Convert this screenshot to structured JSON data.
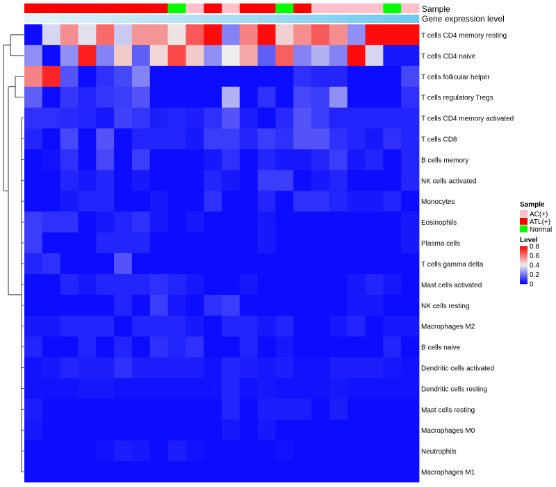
{
  "chart_data": {
    "type": "heatmap",
    "annotation_tracks": [
      "Sample",
      "Gene expression level"
    ],
    "samples": [
      "ATL(+)",
      "ATL(+)",
      "ATL(+)",
      "ATL(+)",
      "ATL(+)",
      "ATL(+)",
      "ATL(+)",
      "ATL(+)",
      "Normal",
      "AC(+)",
      "ATL(+)",
      "AC(+)",
      "ATL(+)",
      "ATL(+)",
      "Normal",
      "ATL(+)",
      "AC(+)",
      "AC(+)",
      "AC(+)",
      "AC(+)",
      "Normal",
      "AC(+)"
    ],
    "expression_level": [
      0.03,
      0.07,
      0.11,
      0.15,
      0.19,
      0.23,
      0.27,
      0.3,
      0.34,
      0.38,
      0.42,
      0.46,
      0.5,
      0.54,
      0.58,
      0.62,
      0.66,
      0.7,
      0.74,
      0.78,
      0.82,
      0.86
    ],
    "rows": [
      "T cells CD4 memory resting",
      "T cells CD4 naive",
      "T cells follicular helper",
      "T cells regulatory  Tregs",
      "T cells CD4 memory activated",
      "T cells CD8",
      "B cells memory",
      "NK cells activated",
      "Monocytes",
      "Eosinophils",
      "Plasma cells",
      "T cells gamma delta",
      "Mast cells activated",
      "NK cells resting",
      "Macrophages M2",
      "B cells naive",
      "Dendritic cells activated",
      "Dendritic cells resting",
      "Mast cells resting",
      "Macrophages M0",
      "Neutrophils",
      "Macrophages M1"
    ],
    "values": [
      [
        0.02,
        0.36,
        0.56,
        0.38,
        0.62,
        0.34,
        0.55,
        0.55,
        0.42,
        0.65,
        0.78,
        0.22,
        0.58,
        0.78,
        0.45,
        0.56,
        0.65,
        0.56,
        0.24,
        0.78,
        0.78,
        0.78
      ],
      [
        0.24,
        0.02,
        0.24,
        0.75,
        0.22,
        0.46,
        0.16,
        0.44,
        0.68,
        0.46,
        0.24,
        0.4,
        0.52,
        0.16,
        0.64,
        0.22,
        0.3,
        0.22,
        0.78,
        0.36,
        0.04,
        0.04
      ],
      [
        0.58,
        0.74,
        0.14,
        0.02,
        0.08,
        0.12,
        0.22,
        0.02,
        0.02,
        0.02,
        0.02,
        0.02,
        0.02,
        0.02,
        0.02,
        0.08,
        0.06,
        0.06,
        0.02,
        0.02,
        0.02,
        0.12
      ],
      [
        0.16,
        0.02,
        0.09,
        0.06,
        0.09,
        0.1,
        0.14,
        0.02,
        0.02,
        0.02,
        0.02,
        0.3,
        0.02,
        0.08,
        0.02,
        0.12,
        0.1,
        0.24,
        0.02,
        0.02,
        0.02,
        0.08
      ],
      [
        0.08,
        0.08,
        0.07,
        0.06,
        0.04,
        0.11,
        0.09,
        0.05,
        0.06,
        0.05,
        0.08,
        0.14,
        0.05,
        0.02,
        0.07,
        0.14,
        0.1,
        0.06,
        0.06,
        0.06,
        0.06,
        0.06
      ],
      [
        0.06,
        0.02,
        0.12,
        0.02,
        0.14,
        0.02,
        0.06,
        0.06,
        0.06,
        0.04,
        0.1,
        0.1,
        0.06,
        0.1,
        0.08,
        0.14,
        0.14,
        0.08,
        0.06,
        0.04,
        0.08,
        0.06
      ],
      [
        0.02,
        0.03,
        0.08,
        0.02,
        0.12,
        0.02,
        0.1,
        0.02,
        0.02,
        0.02,
        0.04,
        0.08,
        0.02,
        0.06,
        0.04,
        0.04,
        0.06,
        0.1,
        0.04,
        0.06,
        0.02,
        0.06
      ],
      [
        0.02,
        0.02,
        0.06,
        0.04,
        0.06,
        0.02,
        0.04,
        0.02,
        0.02,
        0.02,
        0.06,
        0.04,
        0.02,
        0.1,
        0.1,
        0.02,
        0.04,
        0.06,
        0.02,
        0.02,
        0.02,
        0.06
      ],
      [
        0.02,
        0.02,
        0.04,
        0.06,
        0.06,
        0.02,
        0.02,
        0.04,
        0.02,
        0.02,
        0.08,
        0.02,
        0.02,
        0.06,
        0.02,
        0.08,
        0.08,
        0.06,
        0.04,
        0.04,
        0.06,
        0.02
      ],
      [
        0.1,
        0.08,
        0.08,
        0.02,
        0.04,
        0.06,
        0.08,
        0.04,
        0.02,
        0.04,
        0.02,
        0.02,
        0.02,
        0.04,
        0.02,
        0.02,
        0.02,
        0.02,
        0.02,
        0.02,
        0.02,
        0.04
      ],
      [
        0.1,
        0.02,
        0.02,
        0.02,
        0.06,
        0.06,
        0.06,
        0.02,
        0.02,
        0.02,
        0.02,
        0.02,
        0.02,
        0.04,
        0.02,
        0.02,
        0.02,
        0.02,
        0.02,
        0.02,
        0.02,
        0.04
      ],
      [
        0.06,
        0.08,
        0.02,
        0.02,
        0.02,
        0.14,
        0.02,
        0.02,
        0.02,
        0.02,
        0.02,
        0.02,
        0.02,
        0.02,
        0.02,
        0.02,
        0.02,
        0.02,
        0.02,
        0.02,
        0.02,
        0.02
      ],
      [
        0.02,
        0.02,
        0.06,
        0.04,
        0.06,
        0.06,
        0.06,
        0.08,
        0.06,
        0.04,
        0.02,
        0.02,
        0.04,
        0.02,
        0.02,
        0.02,
        0.02,
        0.02,
        0.04,
        0.06,
        0.04,
        0.02
      ],
      [
        0.02,
        0.02,
        0.02,
        0.02,
        0.02,
        0.06,
        0.02,
        0.1,
        0.04,
        0.02,
        0.08,
        0.1,
        0.02,
        0.02,
        0.02,
        0.02,
        0.02,
        0.02,
        0.04,
        0.04,
        0.02,
        0.02
      ],
      [
        0.04,
        0.04,
        0.06,
        0.06,
        0.06,
        0.02,
        0.06,
        0.06,
        0.06,
        0.04,
        0.02,
        0.06,
        0.06,
        0.04,
        0.06,
        0.02,
        0.02,
        0.04,
        0.06,
        0.02,
        0.04,
        0.04
      ],
      [
        0.06,
        0.02,
        0.02,
        0.06,
        0.02,
        0.06,
        0.02,
        0.08,
        0.06,
        0.08,
        0.02,
        0.02,
        0.06,
        0.02,
        0.04,
        0.02,
        0.02,
        0.02,
        0.02,
        0.02,
        0.06,
        0.02
      ],
      [
        0.03,
        0.04,
        0.06,
        0.05,
        0.05,
        0.08,
        0.05,
        0.05,
        0.05,
        0.05,
        0.03,
        0.06,
        0.05,
        0.04,
        0.05,
        0.03,
        0.03,
        0.05,
        0.05,
        0.05,
        0.04,
        0.03
      ],
      [
        0.03,
        0.03,
        0.03,
        0.04,
        0.04,
        0.03,
        0.03,
        0.03,
        0.03,
        0.03,
        0.03,
        0.06,
        0.03,
        0.04,
        0.03,
        0.03,
        0.03,
        0.04,
        0.03,
        0.03,
        0.03,
        0.03
      ],
      [
        0.05,
        0.02,
        0.02,
        0.02,
        0.02,
        0.02,
        0.02,
        0.02,
        0.02,
        0.02,
        0.02,
        0.06,
        0.02,
        0.05,
        0.05,
        0.05,
        0.02,
        0.05,
        0.02,
        0.02,
        0.02,
        0.02
      ],
      [
        0.04,
        0.02,
        0.02,
        0.02,
        0.02,
        0.02,
        0.02,
        0.02,
        0.02,
        0.02,
        0.02,
        0.04,
        0.02,
        0.04,
        0.02,
        0.02,
        0.02,
        0.02,
        0.02,
        0.02,
        0.02,
        0.02
      ],
      [
        0.02,
        0.02,
        0.02,
        0.02,
        0.03,
        0.05,
        0.04,
        0.02,
        0.05,
        0.03,
        0.02,
        0.02,
        0.02,
        0.02,
        0.03,
        0.02,
        0.02,
        0.02,
        0.02,
        0.02,
        0.02,
        0.02
      ],
      [
        0.02,
        0.02,
        0.02,
        0.02,
        0.02,
        0.02,
        0.02,
        0.02,
        0.02,
        0.02,
        0.02,
        0.02,
        0.02,
        0.02,
        0.02,
        0.02,
        0.02,
        0.02,
        0.02,
        0.02,
        0.02,
        0.02
      ]
    ],
    "color_scale": {
      "min": 0,
      "max": 0.8,
      "low": "#0000ff",
      "mid": "#eeeeee",
      "high": "#ff0000"
    },
    "sample_colors": {
      "AC(+)": "#ffc0cb",
      "ATL(+)": "#ff0000",
      "Normal": "#00ff00"
    },
    "expression_colors": {
      "low": "#e6f4fb",
      "high": "#5cc3ee"
    },
    "legend": {
      "sample_title": "Sample",
      "sample_entries": [
        "AC(+)",
        "ATL(+)",
        "Normal"
      ],
      "level_title": "Level",
      "level_ticks": [
        "0.8",
        "0.6",
        "0.4",
        "0.2",
        "0"
      ],
      "level_tick_values": [
        0.8,
        0.6,
        0.4,
        0.2,
        0
      ],
      "placement": "right"
    },
    "dendrogram": "row clustering, left side"
  }
}
